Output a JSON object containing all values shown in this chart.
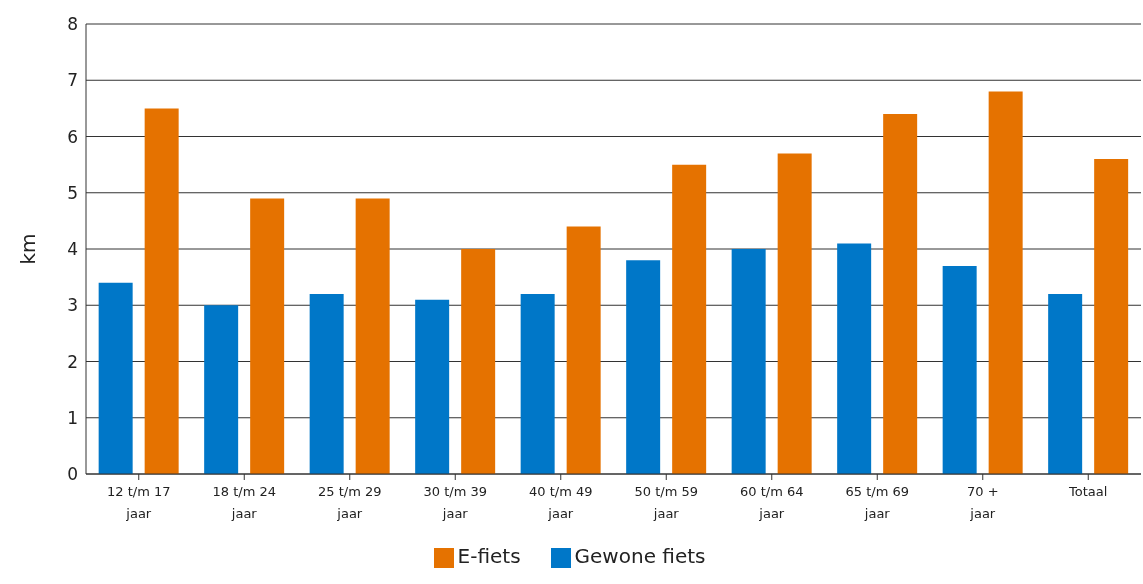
{
  "chart_data": {
    "type": "bar",
    "ylabel": "km",
    "categories": [
      "12 t/m 17 jaar",
      "18 t/m 24 jaar",
      "25 t/m 29 jaar",
      "30 t/m 39 jaar",
      "40 t/m 49 jaar",
      "50 t/m 59 jaar",
      "60 t/m 64 jaar",
      "65 t/m 69 jaar",
      "70 + jaar",
      "Totaal"
    ],
    "series": [
      {
        "name": "Gewone fiets",
        "color": "#0077c8",
        "values": [
          3.4,
          3.0,
          3.2,
          3.1,
          3.2,
          3.8,
          4.0,
          4.1,
          3.7,
          3.2
        ]
      },
      {
        "name": "E-fiets",
        "color": "#e57200",
        "values": [
          6.5,
          4.9,
          4.9,
          4.0,
          4.4,
          5.5,
          5.7,
          6.4,
          6.8,
          5.6
        ]
      }
    ],
    "ylim": [
      0,
      8
    ],
    "yticks": [
      0,
      1,
      2,
      3,
      4,
      5,
      6,
      7,
      8
    ],
    "grid": "y",
    "legend": "bottom"
  }
}
